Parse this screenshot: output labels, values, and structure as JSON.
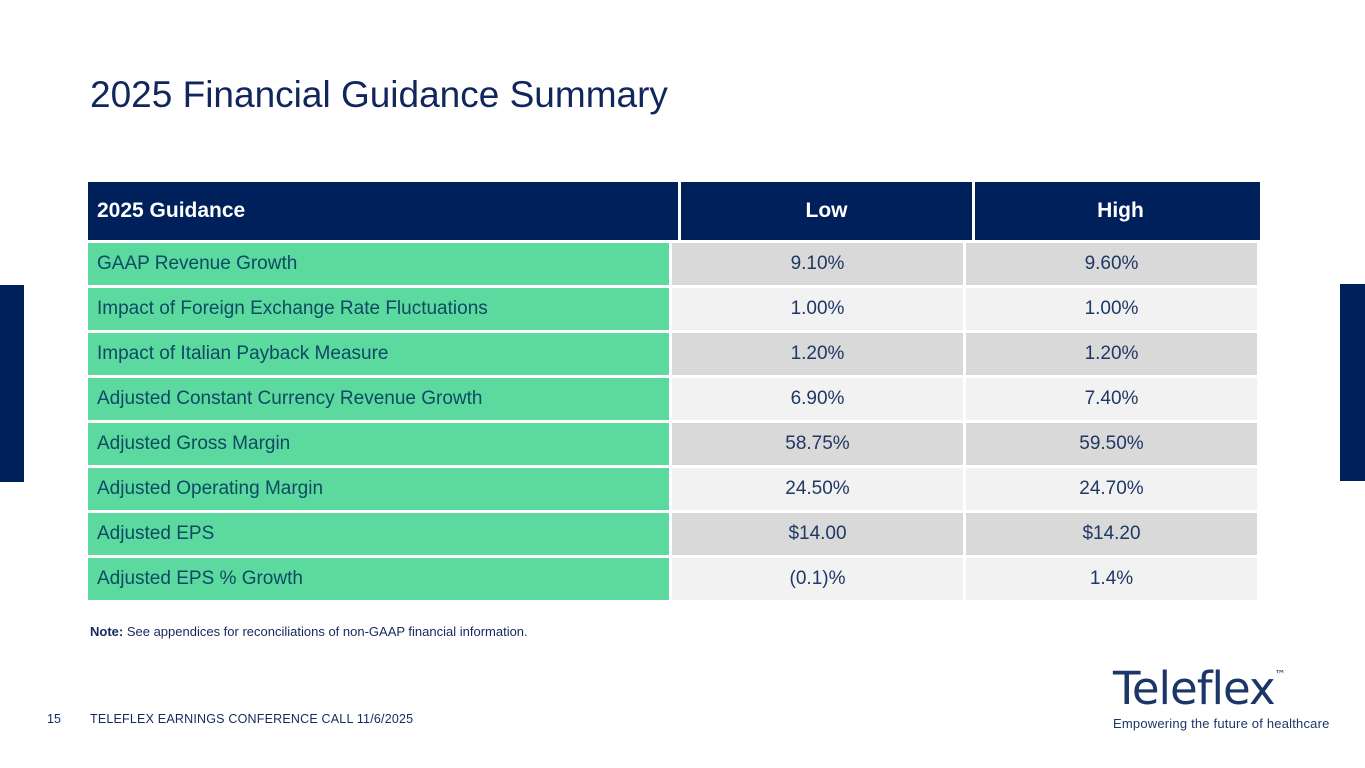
{
  "slide": {
    "title": "2025 Financial Guidance Summary",
    "colors": {
      "navy": "#00205C",
      "green": "#5BD99E",
      "row_gray_dark": "#D9D9D9",
      "row_gray_light": "#F2F2F2",
      "label_text": "#0E4A63",
      "value_text": "#1F3864"
    }
  },
  "table": {
    "headers": [
      "2025 Guidance",
      "Low",
      "High"
    ],
    "rows": [
      {
        "label": "GAAP Revenue Growth",
        "low": "9.10%",
        "high": "9.60%"
      },
      {
        "label": "Impact of Foreign Exchange Rate Fluctuations",
        "low": "1.00%",
        "high": "1.00%"
      },
      {
        "label": "Impact of Italian Payback Measure",
        "low": "1.20%",
        "high": "1.20%"
      },
      {
        "label": "Adjusted Constant Currency Revenue Growth",
        "low": "6.90%",
        "high": "7.40%"
      },
      {
        "label": "Adjusted Gross Margin",
        "low": "58.75%",
        "high": "59.50%"
      },
      {
        "label": "Adjusted Operating Margin",
        "low": "24.50%",
        "high": "24.70%"
      },
      {
        "label": "Adjusted EPS",
        "low": "$14.00",
        "high": "$14.20"
      },
      {
        "label": "Adjusted EPS % Growth",
        "low": "(0.1)%",
        "high": "1.4%"
      }
    ]
  },
  "note": {
    "label": "Note:",
    "text": " See appendices for reconciliations of non-GAAP financial information."
  },
  "footer": {
    "page_number": "15",
    "text": "TELEFLEX EARNINGS CONFERENCE CALL 11/6/2025"
  },
  "logo": {
    "wordmark": "Teleflex",
    "trademark": "™",
    "tagline": "Empowering the future of healthcare"
  }
}
